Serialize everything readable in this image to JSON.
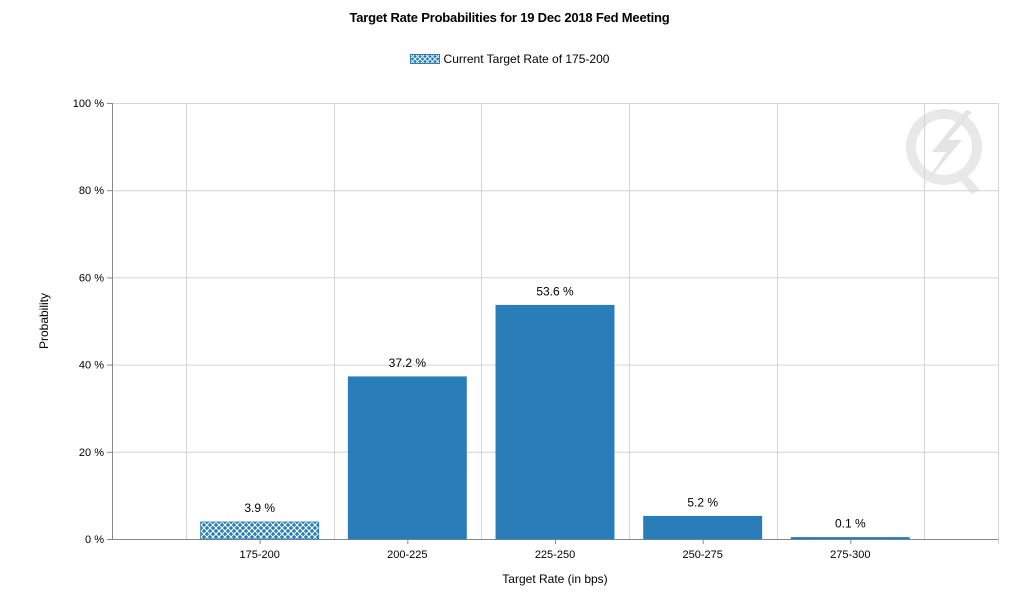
{
  "chart_data": {
    "type": "bar",
    "title": "Target Rate Probabilities for 19 Dec 2018 Fed Meeting",
    "xlabel": "Target Rate (in bps)",
    "ylabel": "Probability",
    "categories": [
      "175-200",
      "200-225",
      "225-250",
      "250-275",
      "275-300"
    ],
    "values": [
      3.9,
      37.2,
      53.6,
      5.2,
      0.1
    ],
    "data_labels": [
      "3.9 %",
      "37.2 %",
      "53.6 %",
      "5.2 %",
      "0.1 %"
    ],
    "ylim": [
      0,
      100
    ],
    "yticks": [
      0,
      20,
      40,
      60,
      80,
      100
    ],
    "ytick_labels": [
      "0 %",
      "20 %",
      "40 %",
      "60 %",
      "80 %",
      "100 %"
    ],
    "grid": true,
    "legend": {
      "placement": "top-center",
      "entries": [
        {
          "label": "Current Target Rate of 175-200",
          "category": "175-200",
          "pattern": "crosshatch"
        }
      ]
    },
    "bar_color": "#2a7db8",
    "hatched_category": "175-200"
  },
  "watermark": {
    "icon": "quikstrike-logo-icon"
  }
}
